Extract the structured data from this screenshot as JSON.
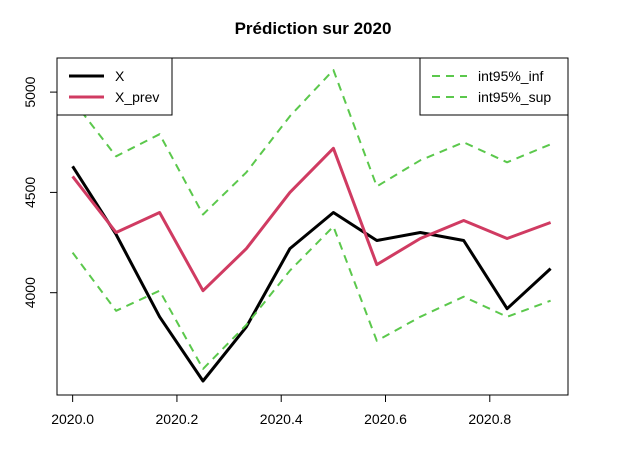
{
  "chart_data": {
    "type": "line",
    "title": "Prédiction sur 2020",
    "xlabel": "",
    "ylabel": "",
    "xlim": [
      2019.97,
      2020.95
    ],
    "ylim": [
      3490,
      5170
    ],
    "x": [
      2020.0,
      2020.0833,
      2020.1667,
      2020.25,
      2020.3333,
      2020.4167,
      2020.5,
      2020.5833,
      2020.6667,
      2020.75,
      2020.8333,
      2020.9167
    ],
    "x_ticks": [
      2020.0,
      2020.2,
      2020.4,
      2020.6,
      2020.8
    ],
    "x_tick_labels": [
      "2020.0",
      "2020.2",
      "2020.4",
      "2020.6",
      "2020.8"
    ],
    "y_ticks": [
      4000,
      4500,
      5000
    ],
    "y_tick_labels": [
      "4000",
      "4500",
      "5000"
    ],
    "grid": false,
    "series": [
      {
        "name": "X",
        "color": "#000000",
        "style": "solid",
        "values": [
          4630,
          4290,
          3880,
          3560,
          3830,
          4220,
          4400,
          4260,
          4300,
          4260,
          3920,
          4120
        ]
      },
      {
        "name": "X_prev",
        "color": "#D03B62",
        "style": "solid",
        "values": [
          4580,
          4300,
          4400,
          4010,
          4220,
          4500,
          4720,
          4140,
          4270,
          4360,
          4270,
          4350
        ]
      },
      {
        "name": "int95%_inf",
        "color": "#5BC84C",
        "style": "dashed",
        "values": [
          4200,
          3910,
          4010,
          3620,
          3840,
          4110,
          4330,
          3760,
          3880,
          3980,
          3880,
          3960
        ]
      },
      {
        "name": "int95%_sup",
        "color": "#5BC84C",
        "style": "dashed",
        "values": [
          4960,
          4680,
          4790,
          4390,
          4600,
          4880,
          5110,
          4530,
          4660,
          4750,
          4650,
          4740
        ]
      }
    ],
    "legends": [
      {
        "placement": "top-left",
        "entries": [
          "X",
          "X_prev"
        ]
      },
      {
        "placement": "top-right",
        "entries": [
          "int95%_inf",
          "int95%_sup"
        ]
      }
    ]
  }
}
